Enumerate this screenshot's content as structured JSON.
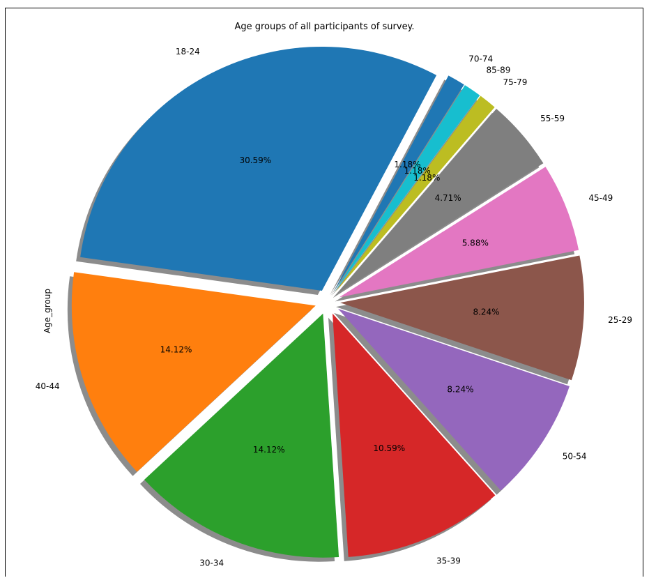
{
  "title": "Age groups of all participants of survey.",
  "ylabel": "Age_group",
  "chart_data": {
    "type": "pie",
    "title": "Age groups of all participants of survey.",
    "ylabel": "Age_group",
    "shadow": true,
    "exploded": true,
    "start_angle_deg": 62,
    "direction": "counterclockwise",
    "slices": [
      {
        "label": "18-24",
        "value": 30.59,
        "pct_label": "30.59%",
        "color": "#1f77b4"
      },
      {
        "label": "40-44",
        "value": 14.12,
        "pct_label": "14.12%",
        "color": "#ff7f0e"
      },
      {
        "label": "30-34",
        "value": 14.12,
        "pct_label": "14.12%",
        "color": "#2ca02c"
      },
      {
        "label": "35-39",
        "value": 10.59,
        "pct_label": "10.59%",
        "color": "#d62728"
      },
      {
        "label": "50-54",
        "value": 8.24,
        "pct_label": "8.24%",
        "color": "#9467bd"
      },
      {
        "label": "25-29",
        "value": 8.24,
        "pct_label": "8.24%",
        "color": "#8c564b"
      },
      {
        "label": "45-49",
        "value": 5.88,
        "pct_label": "5.88%",
        "color": "#e377c2"
      },
      {
        "label": "55-59",
        "value": 4.71,
        "pct_label": "4.71%",
        "color": "#7f7f7f"
      },
      {
        "label": "75-79",
        "value": 1.18,
        "pct_label": "1.18%",
        "color": "#bcbd22"
      },
      {
        "label": "85-89",
        "value": 1.18,
        "pct_label": "1.18%",
        "color": "#17becf"
      },
      {
        "label": "70-74",
        "value": 1.18,
        "pct_label": "1.18%",
        "color": "#1f77b4"
      }
    ]
  }
}
